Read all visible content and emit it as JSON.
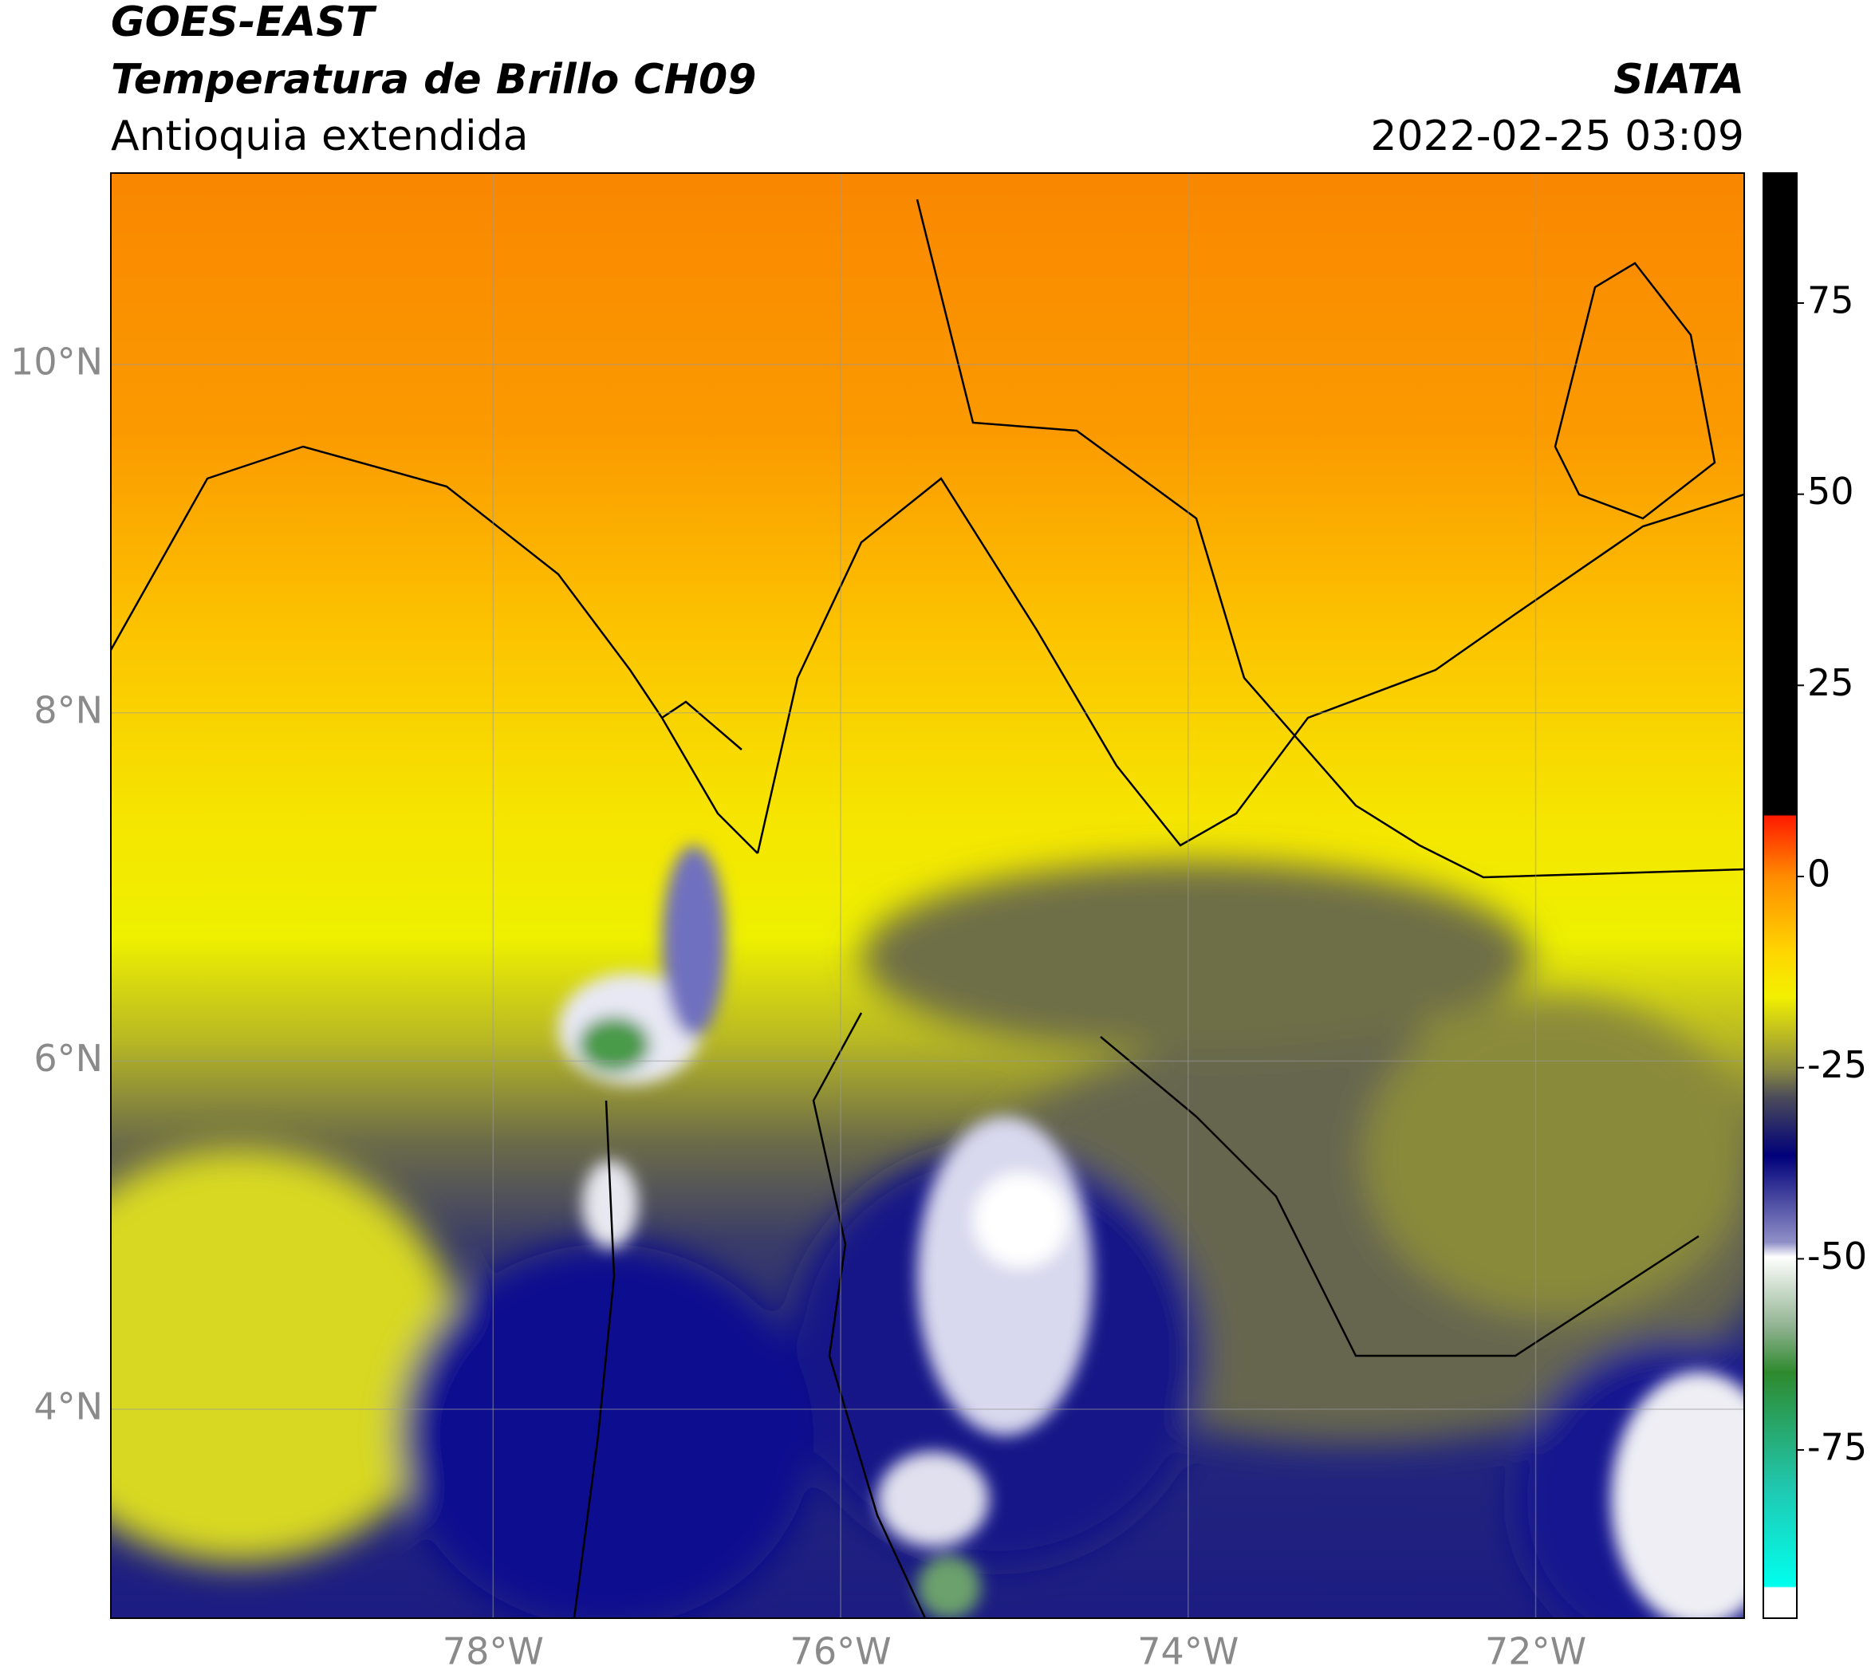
{
  "header": {
    "title": "GOES-EAST",
    "subtitle": "Temperatura de Brillo CH09",
    "region": "Antioquia extendida",
    "source": "SIATA",
    "datetime": "2022-02-25 03:09"
  },
  "map": {
    "lon_range": [
      -80.2,
      -70.8
    ],
    "lat_range": [
      2.8,
      11.1
    ],
    "lon_ticks": [
      {
        "value": -78,
        "label": "78°W"
      },
      {
        "value": -76,
        "label": "76°W"
      },
      {
        "value": -74,
        "label": "74°W"
      },
      {
        "value": -72,
        "label": "72°W"
      }
    ],
    "lat_ticks": [
      {
        "value": 10,
        "label": "10°N"
      },
      {
        "value": 8,
        "label": "8°N"
      },
      {
        "value": 6,
        "label": "6°N"
      },
      {
        "value": 4,
        "label": "4°N"
      }
    ]
  },
  "colorbar": {
    "range": [
      -97,
      92
    ],
    "ticks": [
      75,
      50,
      25,
      0,
      -25,
      -50,
      -75
    ]
  }
}
